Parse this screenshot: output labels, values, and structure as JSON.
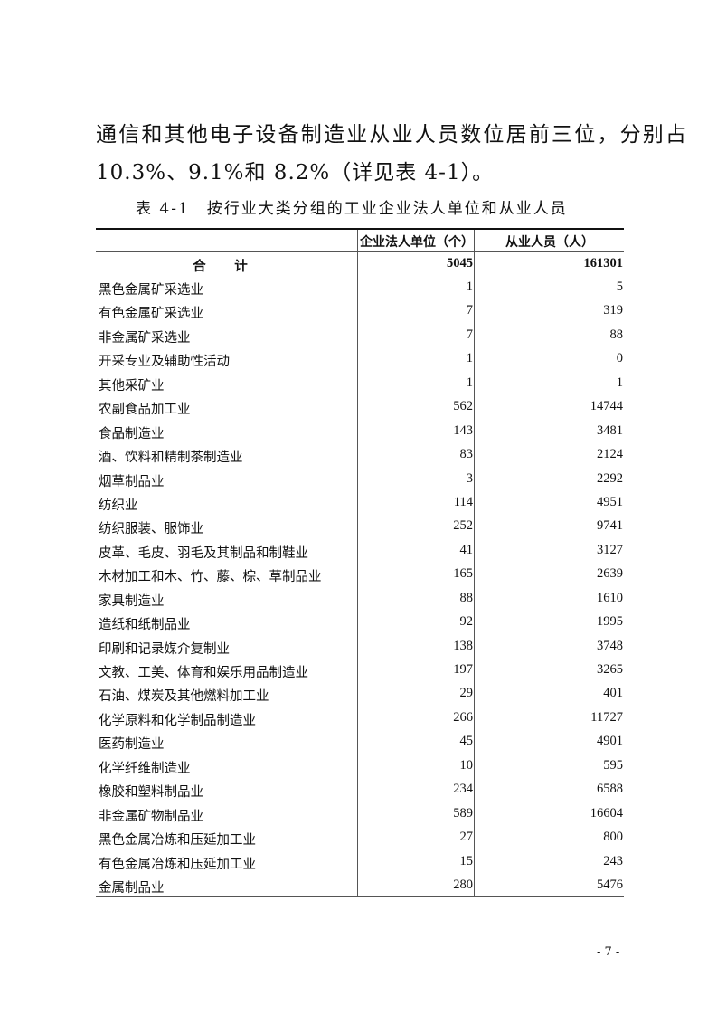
{
  "body_text": {
    "line1": "通信和其他电子设备制造业从业人员数位居前三位，分别占",
    "line2": "10.3%、9.1%和 8.2%（详见表 4-1）。"
  },
  "table": {
    "caption": "表 4-1　按行业大类分组的工业企业法人单位和从业人员",
    "headers": [
      "",
      "企业法人单位（个）",
      "从业人员（人）"
    ],
    "total": {
      "name": "合 计",
      "units": "5045",
      "employees": "161301"
    },
    "rows": [
      {
        "name": "黑色金属矿采选业",
        "units": "1",
        "employees": "5"
      },
      {
        "name": "有色金属矿采选业",
        "units": "7",
        "employees": "319"
      },
      {
        "name": "非金属矿采选业",
        "units": "7",
        "employees": "88"
      },
      {
        "name": "开采专业及辅助性活动",
        "units": "1",
        "employees": "0"
      },
      {
        "name": "其他采矿业",
        "units": "1",
        "employees": "1"
      },
      {
        "name": "农副食品加工业",
        "units": "562",
        "employees": "14744"
      },
      {
        "name": "食品制造业",
        "units": "143",
        "employees": "3481"
      },
      {
        "name": "酒、饮料和精制茶制造业",
        "units": "83",
        "employees": "2124"
      },
      {
        "name": "烟草制品业",
        "units": "3",
        "employees": "2292"
      },
      {
        "name": "纺织业",
        "units": "114",
        "employees": "4951"
      },
      {
        "name": "纺织服装、服饰业",
        "units": "252",
        "employees": "9741"
      },
      {
        "name": "皮革、毛皮、羽毛及其制品和制鞋业",
        "units": "41",
        "employees": "3127"
      },
      {
        "name": "木材加工和木、竹、藤、棕、草制品业",
        "units": "165",
        "employees": "2639"
      },
      {
        "name": "家具制造业",
        "units": "88",
        "employees": "1610"
      },
      {
        "name": "造纸和纸制品业",
        "units": "92",
        "employees": "1995"
      },
      {
        "name": "印刷和记录媒介复制业",
        "units": "138",
        "employees": "3748"
      },
      {
        "name": "文教、工美、体育和娱乐用品制造业",
        "units": "197",
        "employees": "3265"
      },
      {
        "name": "石油、煤炭及其他燃料加工业",
        "units": "29",
        "employees": "401"
      },
      {
        "name": "化学原料和化学制品制造业",
        "units": "266",
        "employees": "11727"
      },
      {
        "name": "医药制造业",
        "units": "45",
        "employees": "4901"
      },
      {
        "name": "化学纤维制造业",
        "units": "10",
        "employees": "595"
      },
      {
        "name": "橡胶和塑料制品业",
        "units": "234",
        "employees": "6588"
      },
      {
        "name": "非金属矿物制品业",
        "units": "589",
        "employees": "16604"
      },
      {
        "name": "黑色金属冶炼和压延加工业",
        "units": "27",
        "employees": "800"
      },
      {
        "name": "有色金属冶炼和压延加工业",
        "units": "15",
        "employees": "243"
      },
      {
        "name": "金属制品业",
        "units": "280",
        "employees": "5476"
      }
    ]
  },
  "page_number": "- 7 -"
}
